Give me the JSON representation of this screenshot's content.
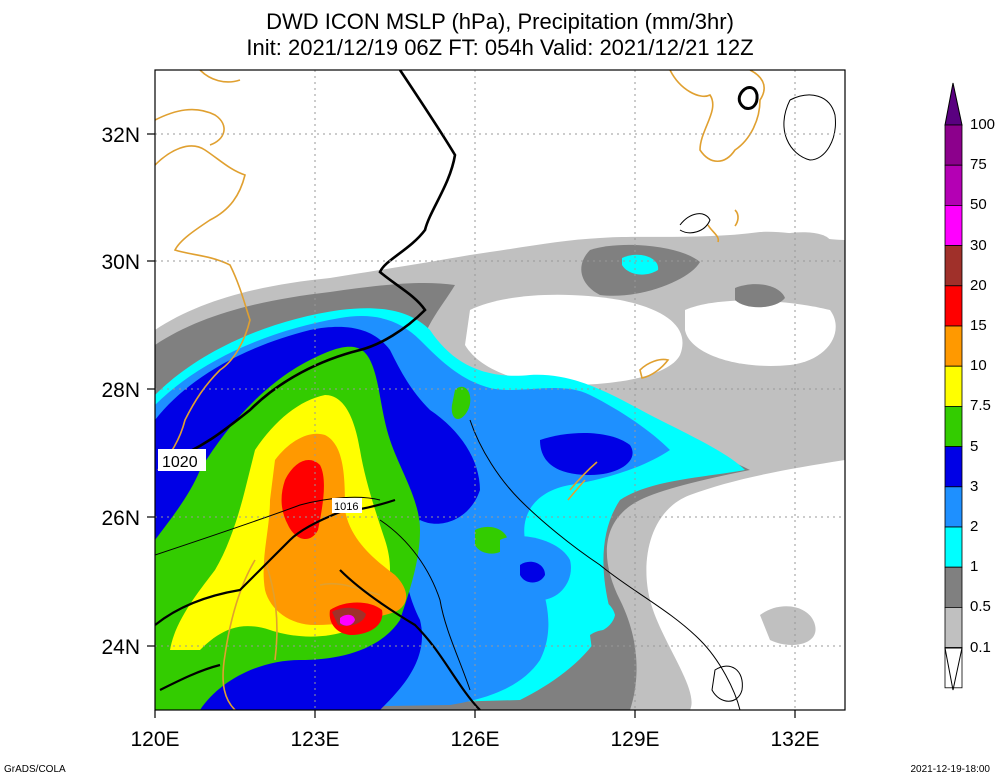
{
  "title": {
    "line1": "DWD ICON MSLP (hPa), Precipitation (mm/3hr)",
    "line2": "Init: 2021/12/19 06Z  FT: 054h  Valid: 2021/12/21 12Z"
  },
  "axes": {
    "lon_ticks": [
      "120E",
      "123E",
      "126E",
      "129E",
      "132E"
    ],
    "lat_ticks": [
      "32N",
      "30N",
      "28N",
      "26N",
      "24N"
    ],
    "lon_range": [
      120,
      133
    ],
    "lat_range": [
      23,
      33
    ],
    "grid": "dotted"
  },
  "isobars": {
    "label_1020": "1020",
    "label_1016": "1016"
  },
  "colorbar": {
    "labels": [
      "100",
      "75",
      "50",
      "30",
      "20",
      "15",
      "10",
      "7.5",
      "5",
      "3",
      "2",
      "1",
      "0.5",
      "0.1"
    ],
    "colors": [
      "#8c008c",
      "#b400b4",
      "#ff00ff",
      "#a0302a",
      "#ff0000",
      "#ff9900",
      "#ffff00",
      "#33cc00",
      "#0000e6",
      "#1e90ff",
      "#00ffff",
      "#808080",
      "#c0c0c0",
      "#ffffff"
    ],
    "top_arrow_color": "#5a0080"
  },
  "colors": {
    "coastline": "#e0a030",
    "isobar": "#000000",
    "grid": "#999999"
  },
  "footer": {
    "left": "GrADS/COLA",
    "right": "2021-12-19-18:00"
  }
}
